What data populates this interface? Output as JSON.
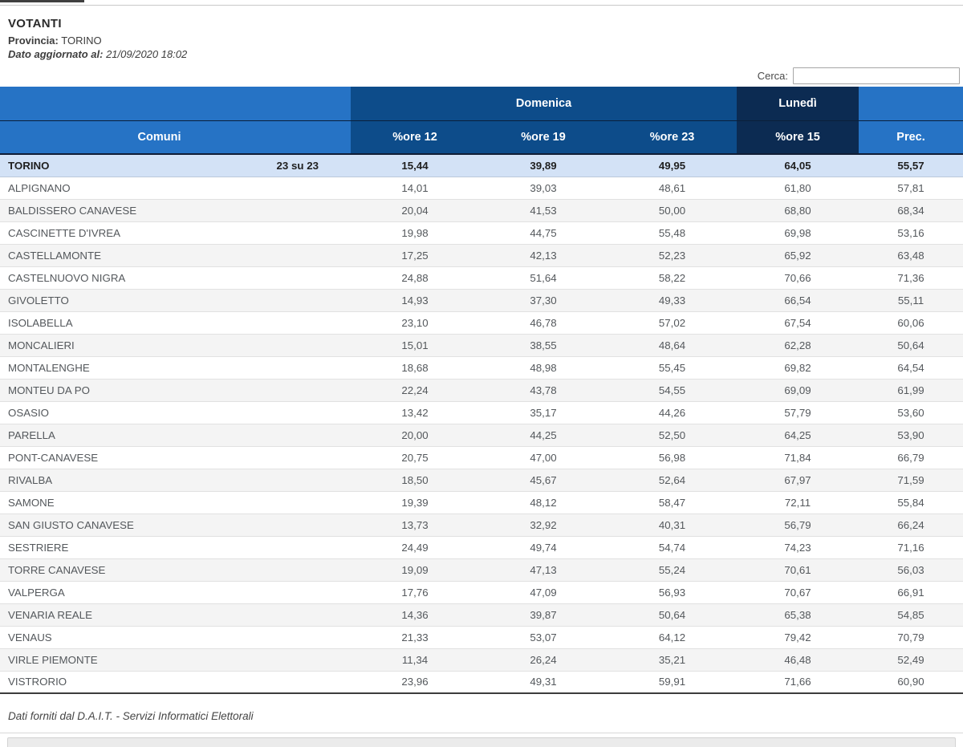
{
  "header": {
    "title": "VOTANTI",
    "province_label": "Provincia:",
    "province_value": "TORINO",
    "updated_label": "Dato aggiornato al:",
    "updated_value": "21/09/2020 18:02"
  },
  "search": {
    "label": "Cerca:",
    "value": ""
  },
  "table": {
    "group_headers": {
      "domenica": "Domenica",
      "lunedi": "Lunedì"
    },
    "columns": [
      "Comuni",
      "%ore 12",
      "%ore 19",
      "%ore 23",
      "%ore 15",
      "Prec."
    ],
    "summary_row": {
      "name": "TORINO",
      "count": "23 su 23",
      "values": [
        "15,44",
        "39,89",
        "49,95",
        "64,05",
        "55,57"
      ]
    },
    "rows": [
      {
        "name": "ALPIGNANO",
        "values": [
          "14,01",
          "39,03",
          "48,61",
          "61,80",
          "57,81"
        ]
      },
      {
        "name": "BALDISSERO CANAVESE",
        "values": [
          "20,04",
          "41,53",
          "50,00",
          "68,80",
          "68,34"
        ]
      },
      {
        "name": "CASCINETTE D'IVREA",
        "values": [
          "19,98",
          "44,75",
          "55,48",
          "69,98",
          "53,16"
        ]
      },
      {
        "name": "CASTELLAMONTE",
        "values": [
          "17,25",
          "42,13",
          "52,23",
          "65,92",
          "63,48"
        ]
      },
      {
        "name": "CASTELNUOVO NIGRA",
        "values": [
          "24,88",
          "51,64",
          "58,22",
          "70,66",
          "71,36"
        ]
      },
      {
        "name": "GIVOLETTO",
        "values": [
          "14,93",
          "37,30",
          "49,33",
          "66,54",
          "55,11"
        ]
      },
      {
        "name": "ISOLABELLA",
        "values": [
          "23,10",
          "46,78",
          "57,02",
          "67,54",
          "60,06"
        ]
      },
      {
        "name": "MONCALIERI",
        "values": [
          "15,01",
          "38,55",
          "48,64",
          "62,28",
          "50,64"
        ]
      },
      {
        "name": "MONTALENGHE",
        "values": [
          "18,68",
          "48,98",
          "55,45",
          "69,82",
          "64,54"
        ]
      },
      {
        "name": "MONTEU DA PO",
        "values": [
          "22,24",
          "43,78",
          "54,55",
          "69,09",
          "61,99"
        ]
      },
      {
        "name": "OSASIO",
        "values": [
          "13,42",
          "35,17",
          "44,26",
          "57,79",
          "53,60"
        ]
      },
      {
        "name": "PARELLA",
        "values": [
          "20,00",
          "44,25",
          "52,50",
          "64,25",
          "53,90"
        ]
      },
      {
        "name": "PONT-CANAVESE",
        "values": [
          "20,75",
          "47,00",
          "56,98",
          "71,84",
          "66,79"
        ]
      },
      {
        "name": "RIVALBA",
        "values": [
          "18,50",
          "45,67",
          "52,64",
          "67,97",
          "71,59"
        ]
      },
      {
        "name": "SAMONE",
        "values": [
          "19,39",
          "48,12",
          "58,47",
          "72,11",
          "55,84"
        ]
      },
      {
        "name": "SAN GIUSTO CANAVESE",
        "values": [
          "13,73",
          "32,92",
          "40,31",
          "56,79",
          "66,24"
        ]
      },
      {
        "name": "SESTRIERE",
        "values": [
          "24,49",
          "49,74",
          "54,74",
          "74,23",
          "71,16"
        ]
      },
      {
        "name": "TORRE CANAVESE",
        "values": [
          "19,09",
          "47,13",
          "55,24",
          "70,61",
          "56,03"
        ]
      },
      {
        "name": "VALPERGA",
        "values": [
          "17,76",
          "47,09",
          "56,93",
          "70,67",
          "66,91"
        ]
      },
      {
        "name": "VENARIA REALE",
        "values": [
          "14,36",
          "39,87",
          "50,64",
          "65,38",
          "54,85"
        ]
      },
      {
        "name": "VENAUS",
        "values": [
          "21,33",
          "53,07",
          "64,12",
          "79,42",
          "70,79"
        ]
      },
      {
        "name": "VIRLE PIEMONTE",
        "values": [
          "11,34",
          "26,24",
          "35,21",
          "46,48",
          "52,49"
        ]
      },
      {
        "name": "VISTRORIO",
        "values": [
          "23,96",
          "49,31",
          "59,91",
          "71,66",
          "60,90"
        ]
      }
    ]
  },
  "footer": {
    "note": "Dati forniti dal D.A.I.T. - Servizi Informatici Elettorali"
  },
  "colors": {
    "header_blue": "#2673c5",
    "header_navy": "#0d4c8a",
    "header_dark_navy": "#0c2b52",
    "summary_row_bg": "#d3e2f6",
    "stripe_bg": "#f4f4f4"
  }
}
